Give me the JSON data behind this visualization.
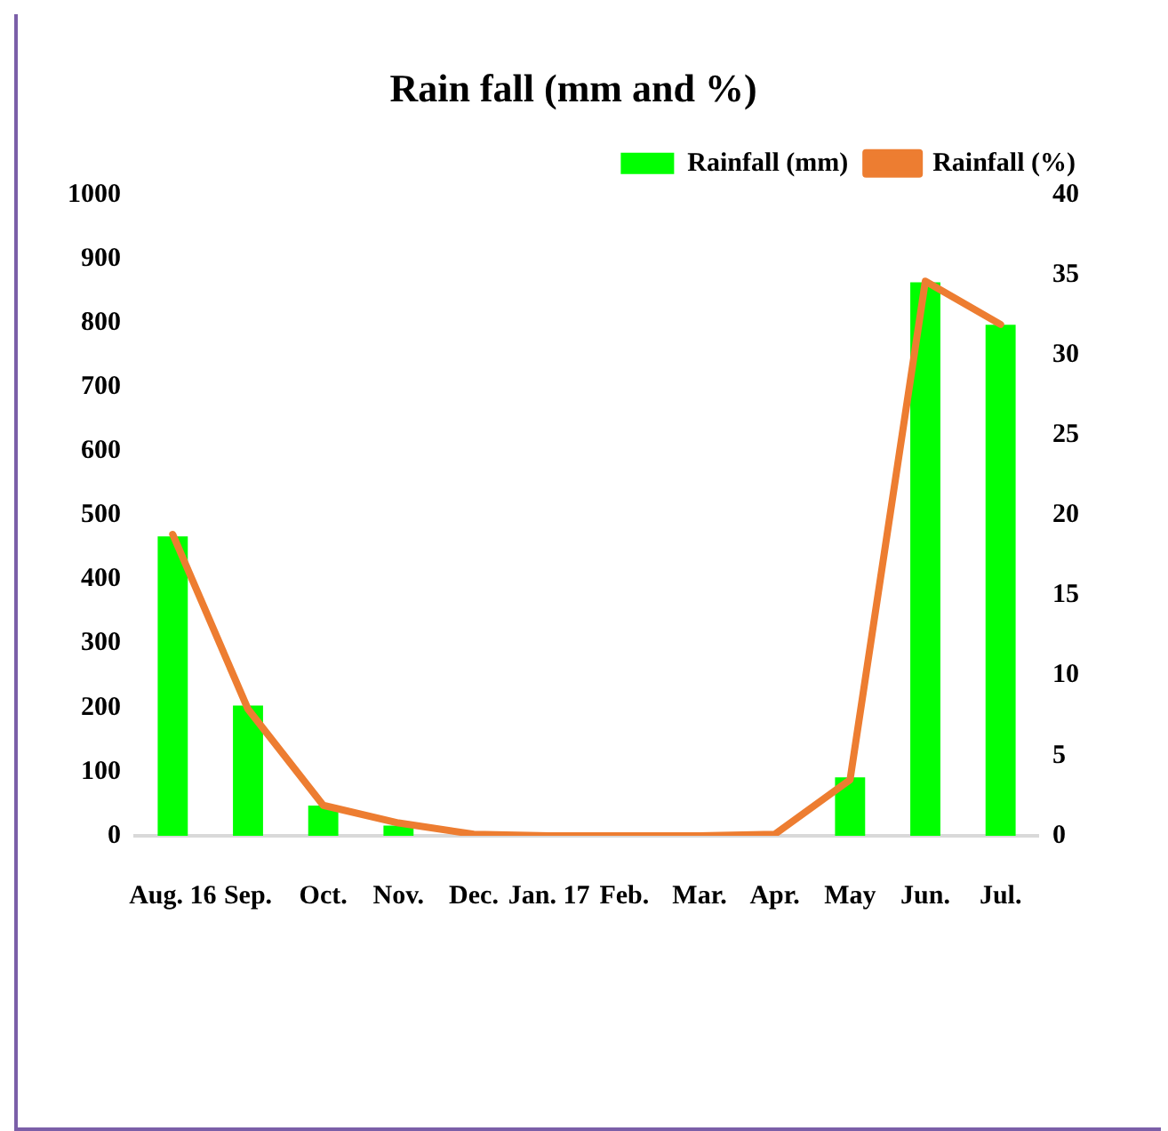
{
  "chart_data": {
    "type": "bar",
    "title": "Rain fall (mm and %)",
    "categories": [
      "Aug. 16",
      "Sep.",
      "Oct.",
      "Nov.",
      "Dec.",
      "Jan. 17",
      "Feb.",
      "Mar.",
      "Apr.",
      "May",
      "Jun.",
      "Jul."
    ],
    "series": [
      {
        "name": "Rainfall (mm)",
        "color": "#00ff00",
        "values": [
          467,
          203,
          47,
          16,
          0,
          0,
          0,
          0,
          0,
          91,
          863,
          797
        ]
      },
      {
        "name": "Rainfall (%)",
        "type": "line",
        "axis": "y2",
        "color": "#ed7d31",
        "values": [
          18.8,
          7.9,
          1.9,
          0.8,
          0.1,
          0,
          0,
          0,
          0.1,
          3.5,
          34.6,
          31.9
        ]
      }
    ],
    "ylim": [
      0,
      1000
    ],
    "yticks": [
      0,
      100,
      200,
      300,
      400,
      500,
      600,
      700,
      800,
      900,
      1000
    ],
    "y2lim": [
      0,
      40
    ],
    "y2ticks": [
      0,
      5,
      10,
      15,
      20,
      25,
      30,
      35,
      40
    ],
    "grid": false,
    "legend": "top right",
    "marker": "none"
  }
}
